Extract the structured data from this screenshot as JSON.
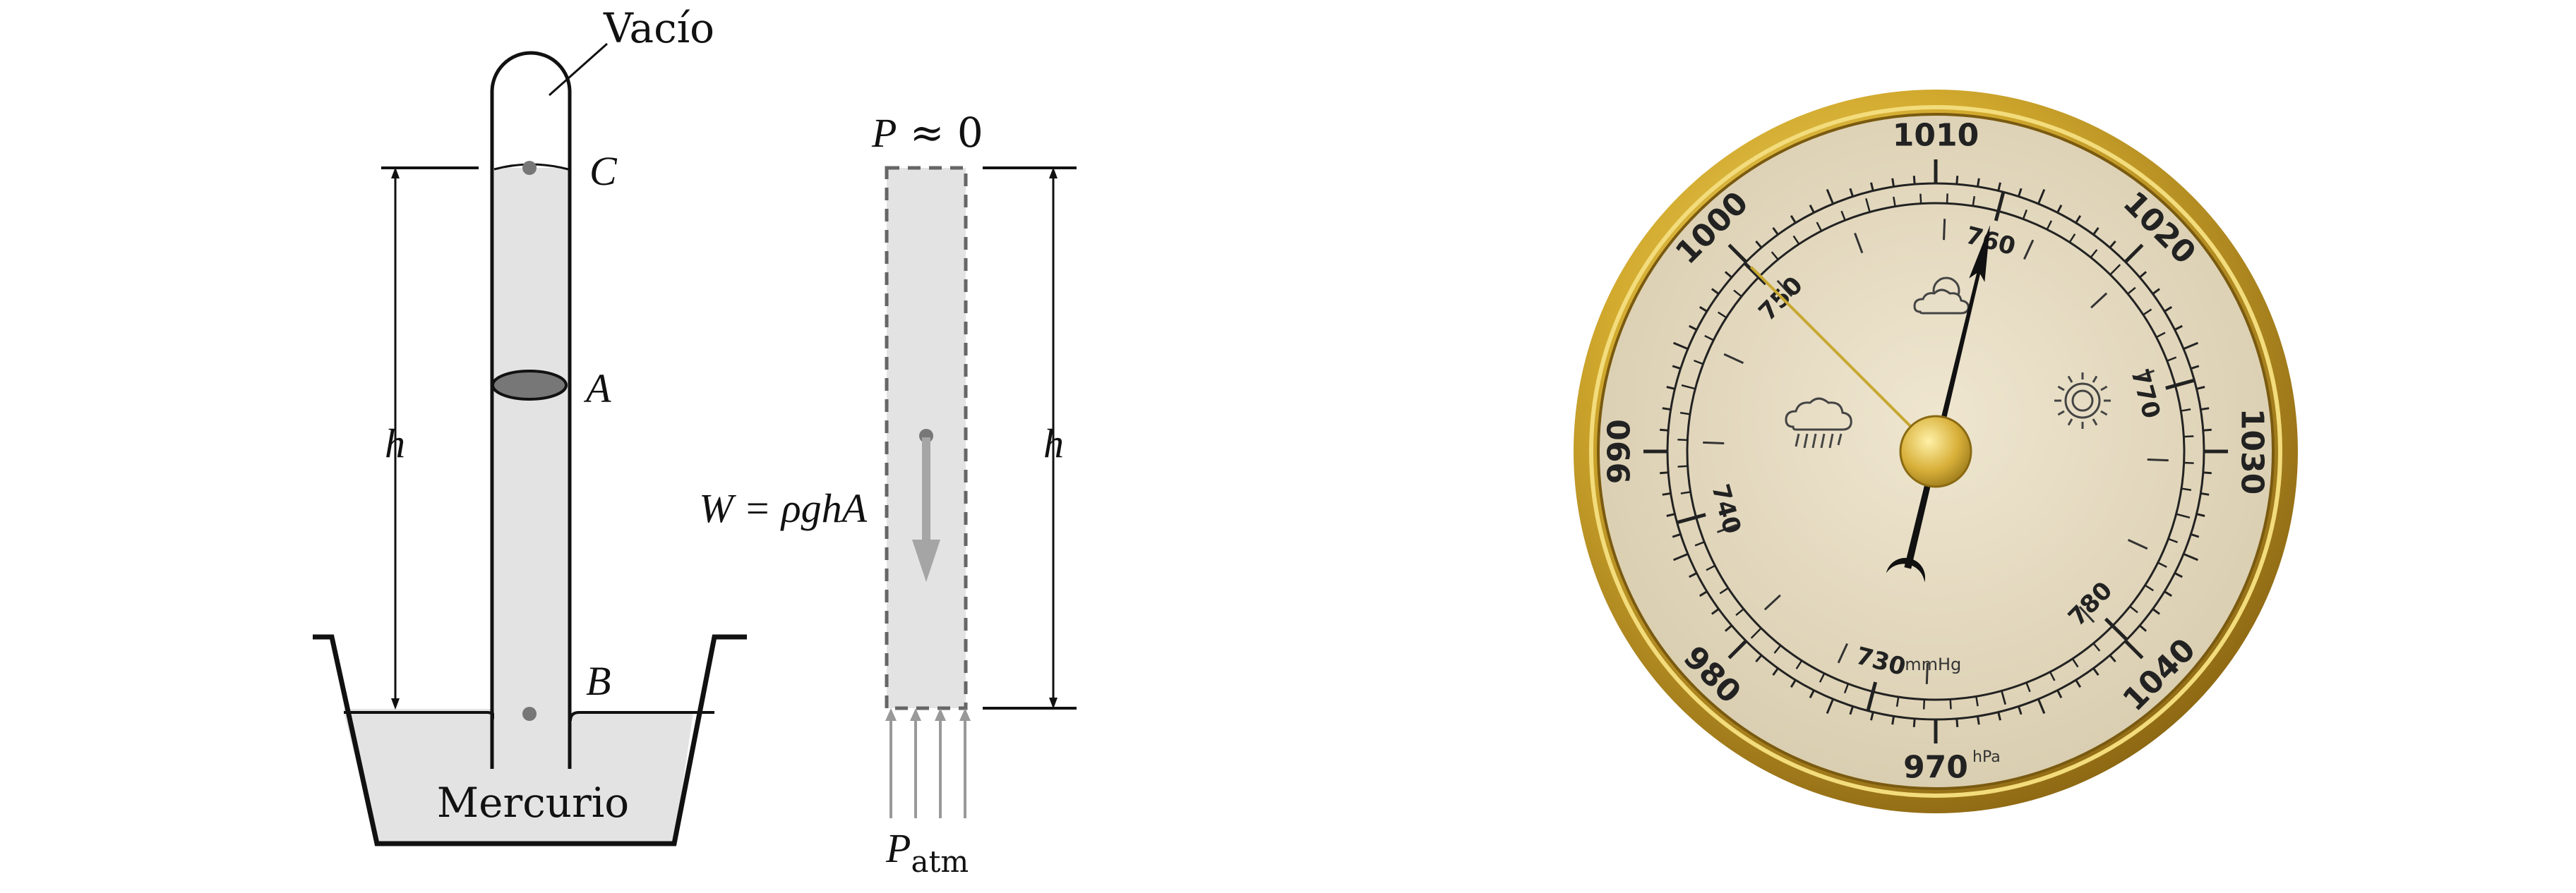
{
  "barometer_diagram": {
    "vacuum_label": "Vacío",
    "point_c": "C",
    "point_a": "A",
    "point_b": "B",
    "height_label": "h",
    "mercury_label": "Mercurio",
    "pressure_top_p": "P",
    "pressure_top_rest": " ≈ 0",
    "weight_lhs": "W",
    "weight_rhs": " = ρghA",
    "column_height_label": "h",
    "patm_p": "P",
    "patm_sub": "atm"
  },
  "dial": {
    "hpa_labels": [
      {
        "text": "970",
        "value": 970
      },
      {
        "text": "980",
        "value": 980
      },
      {
        "text": "990",
        "value": 990
      },
      {
        "text": "1000",
        "value": 1000
      },
      {
        "text": "1010",
        "value": 1010
      },
      {
        "text": "1020",
        "value": 1020
      },
      {
        "text": "1030",
        "value": 1030
      },
      {
        "text": "1040",
        "value": 1040
      }
    ],
    "hpa_unit": "hPa",
    "mmhg_labels": [
      {
        "text": "730",
        "value": 730
      },
      {
        "text": "740",
        "value": 740
      },
      {
        "text": "750",
        "value": 750
      },
      {
        "text": "760",
        "value": 760
      },
      {
        "text": "770",
        "value": 770
      },
      {
        "text": "780",
        "value": 780
      }
    ],
    "mmhg_unit": "mmHg",
    "pointer_hpa": 1013,
    "reference_hpa": 1000,
    "weather_icons": [
      "rain-cloud-icon",
      "sun-cloud-icon",
      "sun-icon"
    ],
    "colors": {
      "bezel": "#c9a227",
      "face": "#e6dcc3",
      "hub": "#d9b23a",
      "ink": "#222222",
      "reference_needle": "#c8a832"
    }
  }
}
